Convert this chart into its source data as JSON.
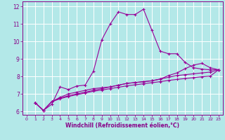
{
  "xlabel": "Windchill (Refroidissement éolien,°C)",
  "background_color": "#b3e8e8",
  "grid_color": "#ffffff",
  "line_color": "#990099",
  "xlim": [
    -0.5,
    23.5
  ],
  "ylim": [
    5.8,
    12.3
  ],
  "yticks": [
    6,
    7,
    8,
    9,
    10,
    11,
    12
  ],
  "xticks": [
    0,
    1,
    2,
    3,
    4,
    5,
    6,
    7,
    8,
    9,
    10,
    11,
    12,
    13,
    14,
    15,
    16,
    17,
    18,
    19,
    20,
    21,
    22,
    23
  ],
  "series1_x": [
    1,
    2,
    3,
    4,
    5,
    6,
    7,
    8,
    9,
    10,
    11,
    12,
    13,
    14,
    15,
    16,
    17,
    18,
    19,
    20,
    21,
    22,
    23
  ],
  "series1_y": [
    6.5,
    6.05,
    6.4,
    7.4,
    7.25,
    7.45,
    7.5,
    8.3,
    10.1,
    11.0,
    11.7,
    11.55,
    11.55,
    11.85,
    10.65,
    9.45,
    9.3,
    9.3,
    8.8,
    8.5,
    8.42,
    8.38,
    8.38
  ],
  "series2_x": [
    1,
    2,
    3,
    4,
    5,
    6,
    7,
    8,
    9,
    10,
    11,
    12,
    13,
    14,
    15,
    16,
    17,
    18,
    19,
    20,
    21,
    22,
    23
  ],
  "series2_y": [
    6.5,
    6.05,
    6.55,
    6.8,
    7.0,
    7.1,
    7.2,
    7.3,
    7.35,
    7.4,
    7.5,
    7.6,
    7.65,
    7.7,
    7.75,
    7.85,
    8.05,
    8.2,
    8.45,
    8.65,
    8.75,
    8.5,
    8.38
  ],
  "series3_x": [
    1,
    2,
    3,
    4,
    5,
    6,
    7,
    8,
    9,
    10,
    11,
    12,
    13,
    14,
    15,
    16,
    17,
    18,
    19,
    20,
    21,
    22,
    23
  ],
  "series3_y": [
    6.5,
    6.05,
    6.55,
    6.75,
    6.9,
    7.0,
    7.1,
    7.2,
    7.3,
    7.4,
    7.5,
    7.6,
    7.65,
    7.7,
    7.75,
    7.85,
    7.95,
    8.05,
    8.1,
    8.15,
    8.2,
    8.25,
    8.38
  ],
  "series4_x": [
    1,
    2,
    3,
    4,
    5,
    6,
    7,
    8,
    9,
    10,
    11,
    12,
    13,
    14,
    15,
    16,
    17,
    18,
    19,
    20,
    21,
    22,
    23
  ],
  "series4_y": [
    6.5,
    6.05,
    6.55,
    6.72,
    6.85,
    6.95,
    7.05,
    7.15,
    7.22,
    7.3,
    7.38,
    7.46,
    7.52,
    7.58,
    7.64,
    7.7,
    7.77,
    7.83,
    7.88,
    7.93,
    7.98,
    8.02,
    8.38
  ]
}
